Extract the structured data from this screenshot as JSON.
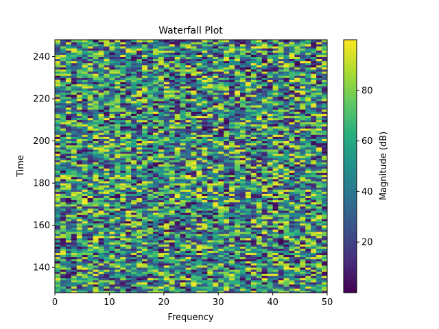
{
  "chart_data": {
    "type": "heatmap",
    "title": "Waterfall Plot",
    "xlabel": "Frequency",
    "ylabel": "Time",
    "xlim": [
      0,
      50
    ],
    "ylim": [
      128,
      248
    ],
    "xticks": [
      0,
      10,
      20,
      30,
      40,
      50
    ],
    "yticks": [
      140,
      160,
      180,
      200,
      220,
      240
    ],
    "grid": false,
    "colormap": "viridis",
    "colorbar": {
      "label": "Magnitude (dB)",
      "range": [
        0,
        100
      ],
      "ticks": [
        20,
        40,
        60,
        80
      ]
    },
    "z_description_values": {
      "n_freq_bins": 50,
      "n_time_rows": 120,
      "min": 0,
      "max": 100
    }
  }
}
